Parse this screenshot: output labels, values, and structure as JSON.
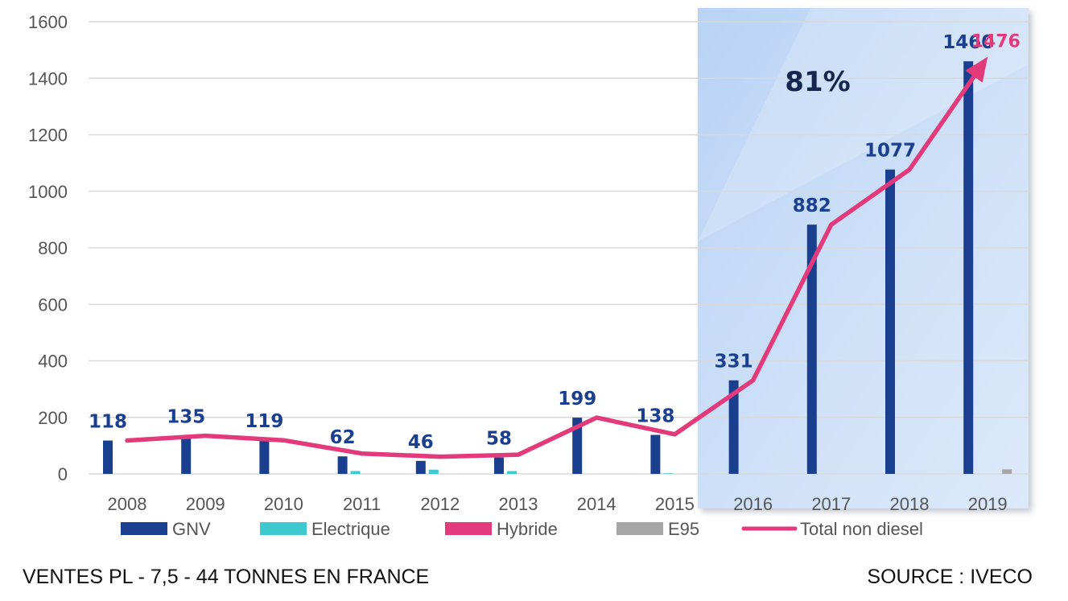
{
  "chart_data": {
    "type": "bar",
    "categories": [
      "2008",
      "2009",
      "2010",
      "2011",
      "2012",
      "2013",
      "2014",
      "2015",
      "2016",
      "2017",
      "2018",
      "2019"
    ],
    "series": [
      {
        "name": "GNV",
        "type": "bar",
        "color": "#1b3f8f",
        "values": [
          118,
          135,
          119,
          62,
          46,
          58,
          199,
          138,
          331,
          882,
          1077,
          1460
        ]
      },
      {
        "name": "Electrique",
        "type": "bar",
        "color": "#3ec9cf",
        "values": [
          0,
          0,
          0,
          10,
          15,
          10,
          0,
          2,
          0,
          0,
          0,
          0
        ]
      },
      {
        "name": "Hybride",
        "type": "bar",
        "color": "#e23a7a",
        "values": [
          0,
          0,
          0,
          0,
          0,
          0,
          0,
          0,
          0,
          0,
          0,
          0
        ]
      },
      {
        "name": "E95",
        "type": "bar",
        "color": "#a6a6a6",
        "values": [
          0,
          0,
          0,
          0,
          0,
          0,
          0,
          0,
          0,
          0,
          0,
          16
        ]
      },
      {
        "name": "Total non diesel",
        "type": "line",
        "color": "#e23a7a",
        "values": [
          118,
          135,
          119,
          72,
          61,
          68,
          199,
          140,
          331,
          882,
          1077,
          1476
        ]
      }
    ],
    "data_labels": [
      "118",
      "135",
      "119",
      "62",
      "46",
      "58",
      "199",
      "138",
      "331",
      "882",
      "1077",
      "1460"
    ],
    "total_label": "1476",
    "ylim": [
      0,
      1600
    ],
    "yticks": [
      "0",
      "200",
      "400",
      "600",
      "800",
      "1000",
      "1200",
      "1400",
      "1600"
    ],
    "grid": true,
    "legend_position": "bottom",
    "highlight": {
      "from": "2016",
      "to": "2019",
      "label": "81%",
      "color": "#c5dcf7"
    },
    "xlabel": "",
    "ylabel": ""
  },
  "footer": {
    "left": "VENTES PL - 7,5 - 44 TONNES EN FRANCE",
    "right": "SOURCE : IVECO"
  }
}
